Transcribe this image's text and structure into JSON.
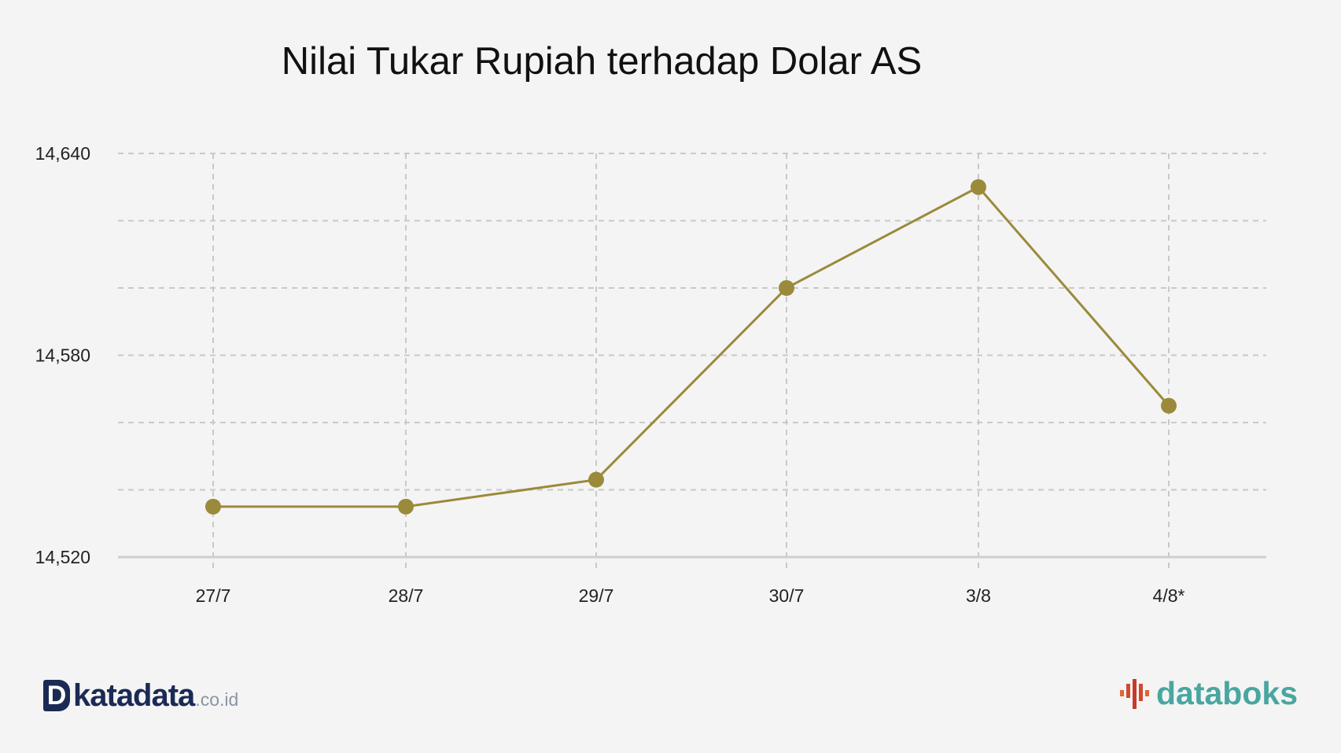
{
  "chart_data": {
    "type": "line",
    "title": "Nilai Tukar Rupiah terhadap Dolar AS",
    "categories": [
      "27/7",
      "28/7",
      "29/7",
      "30/7",
      "3/8",
      "4/8*"
    ],
    "series": [
      {
        "values": [
          14535,
          14535,
          14543,
          14600,
          14630,
          14565
        ]
      }
    ],
    "ylim": [
      14520,
      14640
    ],
    "yticks": [
      "14,640",
      "14,580",
      "14,520"
    ],
    "grid": true,
    "color": "#9b8a3a"
  },
  "branding": {
    "left_mark": "D",
    "left_word": "katadata",
    "left_suffix": ".co.id",
    "right_word": "databoks"
  }
}
